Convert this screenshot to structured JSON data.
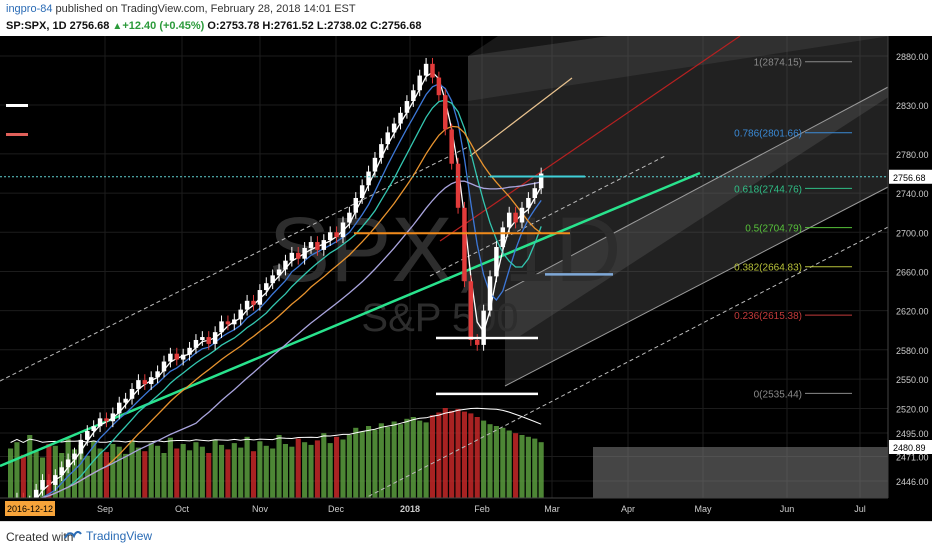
{
  "header": {
    "author": "ingpro-84",
    "published": " published on TradingView.com, February 28, 2018 14:01 EST",
    "symbol": "SP:SPX, 1D",
    "last": "2756.68",
    "change": "+12.40 (+0.45%)",
    "open_label": "O:",
    "open": "2753.78",
    "high_label": "H:",
    "high": "2761.52",
    "low_label": "L:",
    "low": "2738.02",
    "close_label": "C:",
    "close": "2756.68"
  },
  "footer": {
    "created_with": "Created with",
    "brand": "TradingView"
  },
  "colors": {
    "background": "#000000",
    "grid": "#1c1c1c",
    "up_candle": "#ffffff",
    "down_candle": "#e23b3b",
    "volume_up": "#5a9e3e",
    "volume_down": "#c62828",
    "price_tag": "#ffffff",
    "date_tag": "#f7a43a",
    "channel_fill": "#5f5f5f",
    "trendline_green": "#29e38d",
    "trendline_red": "#b52121",
    "trendline_tan": "#e8c28f",
    "ma_white": "#ffffff",
    "ma_blue": "#3d78d8",
    "ma_teal": "#33c6b0",
    "ma_orange": "#e8932e",
    "ma_lavender": "#a9a4dd",
    "level_orange": "#f08a1a",
    "level_cyan": "#3fd0d8",
    "level_blue": "#7fa9d8"
  },
  "chart_data": {
    "type": "candlestick",
    "watermark_symbol": "SPX, 1D",
    "watermark_name": "S&P 500",
    "x_ticks": [
      "Sep",
      "Oct",
      "Nov",
      "Dec",
      "2018",
      "Feb",
      "Mar",
      "Apr",
      "May",
      "Jun",
      "Jul"
    ],
    "x_start_label": "2016-12-12",
    "y_ticks": [
      "2880.00",
      "2830.00",
      "2780.00",
      "2740.00",
      "2700.00",
      "2660.00",
      "2620.00",
      "2580.00",
      "2550.00",
      "2520.00",
      "2495.00",
      "2471.00",
      "2446.00"
    ],
    "current_price_label": "2756.68",
    "volume_ma_label": "2480.89",
    "fib_levels": [
      {
        "label": "1(2874.15)",
        "value": 2874.15,
        "color": "#8a8a8a"
      },
      {
        "label": "0.786(2801.66)",
        "value": 2801.66,
        "color": "#3a8ad6"
      },
      {
        "label": "0.618(2744.76)",
        "value": 2744.76,
        "color": "#2fbf86"
      },
      {
        "label": "0.5(2704.79)",
        "value": 2704.79,
        "color": "#57c23a"
      },
      {
        "label": "0.382(2664.83)",
        "value": 2664.83,
        "color": "#b8c23a"
      },
      {
        "label": "0.236(2615.38)",
        "value": 2615.38,
        "color": "#c23a3a"
      },
      {
        "label": "0(2535.44)",
        "value": 2535.44,
        "color": "#8a8a8a"
      }
    ],
    "price_series": [
      2420,
      2428,
      2418,
      2425,
      2437,
      2447,
      2442,
      2452,
      2460,
      2468,
      2474,
      2488,
      2497,
      2502,
      2510,
      2507,
      2515,
      2526,
      2530,
      2540,
      2549,
      2545,
      2552,
      2558,
      2568,
      2576,
      2570,
      2575,
      2582,
      2590,
      2593,
      2586,
      2598,
      2609,
      2606,
      2611,
      2621,
      2630,
      2626,
      2641,
      2648,
      2656,
      2662,
      2671,
      2679,
      2673,
      2684,
      2690,
      2682,
      2692,
      2700,
      2695,
      2710,
      2720,
      2735,
      2748,
      2762,
      2776,
      2790,
      2802,
      2811,
      2822,
      2834,
      2845,
      2860,
      2872,
      2858,
      2840,
      2805,
      2770,
      2725,
      2650,
      2590,
      2585,
      2620,
      2655,
      2685,
      2705,
      2720,
      2710,
      2725,
      2735,
      2745,
      2760
    ],
    "volume_series": [
      0.55,
      0.62,
      0.48,
      0.7,
      0.52,
      0.45,
      0.6,
      0.58,
      0.5,
      0.66,
      0.54,
      0.59,
      0.47,
      0.63,
      0.55,
      0.51,
      0.6,
      0.57,
      0.49,
      0.64,
      0.56,
      0.52,
      0.61,
      0.58,
      0.5,
      0.67,
      0.55,
      0.6,
      0.53,
      0.62,
      0.57,
      0.5,
      0.65,
      0.59,
      0.54,
      0.61,
      0.56,
      0.68,
      0.52,
      0.63,
      0.58,
      0.55,
      0.7,
      0.6,
      0.57,
      0.66,
      0.62,
      0.59,
      0.64,
      0.72,
      0.61,
      0.68,
      0.65,
      0.7,
      0.78,
      0.74,
      0.8,
      0.76,
      0.83,
      0.79,
      0.85,
      0.82,
      0.88,
      0.9,
      0.86,
      0.84,
      0.92,
      0.95,
      1.0,
      0.97,
      0.99,
      0.96,
      0.94,
      0.9,
      0.86,
      0.82,
      0.8,
      0.78,
      0.75,
      0.72,
      0.7,
      0.68,
      0.66,
      0.62
    ]
  }
}
